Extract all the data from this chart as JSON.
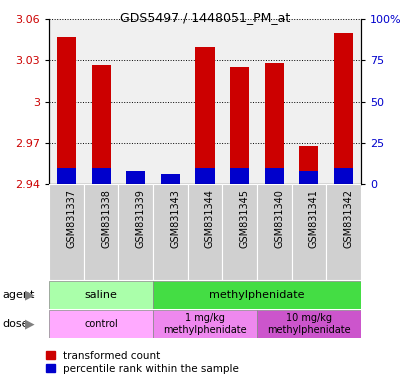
{
  "title": "GDS5497 / 1448051_PM_at",
  "samples": [
    "GSM831337",
    "GSM831338",
    "GSM831339",
    "GSM831343",
    "GSM831344",
    "GSM831345",
    "GSM831340",
    "GSM831341",
    "GSM831342"
  ],
  "transformed_count": [
    3.047,
    3.027,
    2.945,
    2.942,
    3.04,
    3.025,
    3.028,
    2.968,
    3.05
  ],
  "percentile_rank": [
    10,
    10,
    8,
    6,
    10,
    10,
    10,
    8,
    10
  ],
  "bar_bottom": 2.94,
  "ylim_left": [
    2.94,
    3.06
  ],
  "ylim_right": [
    0,
    100
  ],
  "yticks_left": [
    2.94,
    2.97,
    3.0,
    3.03,
    3.06
  ],
  "yticks_right": [
    0,
    25,
    50,
    75,
    100
  ],
  "ytick_labels_left": [
    "2.94",
    "2.97",
    "3",
    "3.03",
    "3.06"
  ],
  "ytick_labels_right": [
    "0",
    "25",
    "50",
    "75",
    "100%"
  ],
  "red_color": "#cc0000",
  "blue_color": "#0000cc",
  "agent_saline_color": "#aaffaa",
  "agent_methyl_color": "#44dd44",
  "dose_control_color": "#ffaaff",
  "dose_1mgkg_color": "#ee88ee",
  "dose_10mgkg_color": "#cc55cc",
  "agent_groups": [
    {
      "label": "saline",
      "start": 0,
      "end": 3
    },
    {
      "label": "methylphenidate",
      "start": 3,
      "end": 9
    }
  ],
  "dose_groups": [
    {
      "label": "control",
      "start": 0,
      "end": 3
    },
    {
      "label": "1 mg/kg\nmethylphenidate",
      "start": 3,
      "end": 6
    },
    {
      "label": "10 mg/kg\nmethylphenidate",
      "start": 6,
      "end": 9
    }
  ],
  "legend_items": [
    {
      "color": "#cc0000",
      "label": "transformed count"
    },
    {
      "color": "#0000cc",
      "label": "percentile rank within the sample"
    }
  ],
  "bar_width": 0.55,
  "tick_label_color_left": "#cc0000",
  "tick_label_color_right": "#0000cc",
  "xticklabel_bg": "#d0d0d0",
  "plot_bg": "#f0f0f0"
}
